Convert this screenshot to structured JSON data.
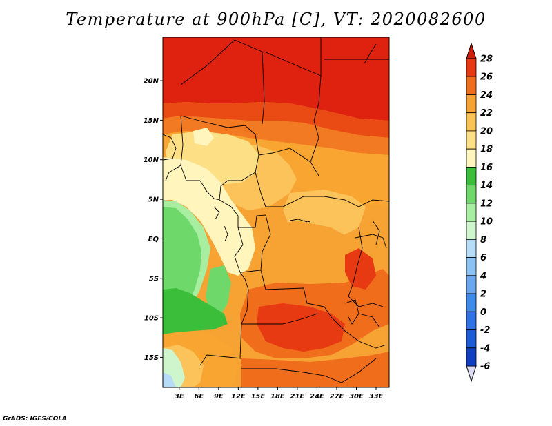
{
  "title": "Temperature at 900hPa [C], VT: 2020082600",
  "credit": "GrADS: IGES/COLA",
  "lat_ticks": [
    {
      "value": 20,
      "label": "20N"
    },
    {
      "value": 15,
      "label": "15N"
    },
    {
      "value": 10,
      "label": "10N"
    },
    {
      "value": 5,
      "label": "5N"
    },
    {
      "value": 0,
      "label": "EQ"
    },
    {
      "value": -5,
      "label": "5S"
    },
    {
      "value": -10,
      "label": "10S"
    },
    {
      "value": -15,
      "label": "15S"
    }
  ],
  "lon_ticks": [
    {
      "value": 3,
      "label": "3E"
    },
    {
      "value": 6,
      "label": "6E"
    },
    {
      "value": 9,
      "label": "9E"
    },
    {
      "value": 12,
      "label": "12E"
    },
    {
      "value": 15,
      "label": "15E"
    },
    {
      "value": 18,
      "label": "18E"
    },
    {
      "value": 21,
      "label": "21E"
    },
    {
      "value": 24,
      "label": "24E"
    },
    {
      "value": 27,
      "label": "27E"
    },
    {
      "value": 30,
      "label": "30E"
    },
    {
      "value": 33,
      "label": "33E"
    }
  ],
  "colorbar": {
    "levels": [
      "-6",
      "-4",
      "-2",
      "0",
      "2",
      "4",
      "6",
      "8",
      "10",
      "12",
      "14",
      "16",
      "18",
      "20",
      "22",
      "24",
      "26",
      "28"
    ],
    "colors": [
      "#0a2272",
      "#0f3ec2",
      "#1c5bd8",
      "#2e72e6",
      "#3d8ceb",
      "#6aa7ef",
      "#8cc1f4",
      "#b7dcf8",
      "#cff5cc",
      "#a7eea1",
      "#6ed96a",
      "#3bbf3b",
      "#fff5bd",
      "#fde086",
      "#fac356",
      "#f7a334",
      "#f06d1c",
      "#e83a12",
      "#d91c0b"
    ],
    "under_color": "#dcdcf4",
    "over_color": "#d01c0b"
  },
  "regions": [
    {
      "name": "sahara-north",
      "color": "#df2110"
    },
    {
      "name": "sahel-band-deep",
      "color": "#ea4a14"
    },
    {
      "name": "sahel-band",
      "color": "#f27a22"
    },
    {
      "name": "sahel-south",
      "color": "#f8a532"
    },
    {
      "name": "central-warm",
      "color": "#fbc35a"
    },
    {
      "name": "west-cool-highlands",
      "color": "#fde086"
    },
    {
      "name": "coastal-cool",
      "color": "#fff5bd"
    },
    {
      "name": "atlantic-green-light",
      "color": "#a7eea1"
    },
    {
      "name": "atlantic-green",
      "color": "#6ed96a"
    },
    {
      "name": "atlantic-green-deep",
      "color": "#3bbf3b"
    },
    {
      "name": "congo-basin",
      "color": "#f7a334"
    },
    {
      "name": "southern-hot",
      "color": "#f06d1c"
    },
    {
      "name": "southern-hottest",
      "color": "#e83a12"
    },
    {
      "name": "southwest-cool",
      "color": "#f8a532"
    },
    {
      "name": "southwest-ocean",
      "color": "#b7dcf8"
    }
  ]
}
